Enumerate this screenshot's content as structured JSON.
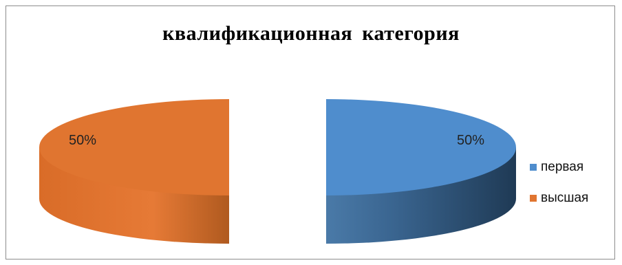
{
  "chart_data": {
    "type": "pie",
    "style": "3d-exploded",
    "title": "квалификационная  категория",
    "slices": [
      {
        "name": "первая",
        "value": 50,
        "label": "50%",
        "color": "#4f8dcd",
        "side_color": "#2b4a68"
      },
      {
        "name": "высшая",
        "value": 50,
        "label": "50%",
        "color": "#e07530",
        "side_color": "#b45b20"
      }
    ],
    "legend_position": "right"
  }
}
